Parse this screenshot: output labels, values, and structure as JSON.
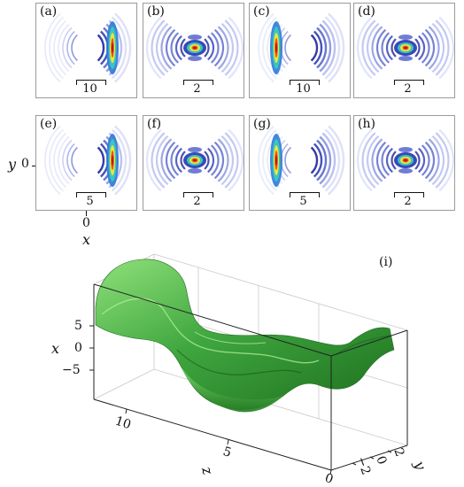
{
  "panels": [
    {
      "label": "(a)",
      "scale": "10"
    },
    {
      "label": "(b)",
      "scale": "2"
    },
    {
      "label": "(c)",
      "scale": "10"
    },
    {
      "label": "(d)",
      "scale": "2"
    },
    {
      "label": "(e)",
      "scale": "5"
    },
    {
      "label": "(f)",
      "scale": "2"
    },
    {
      "label": "(g)",
      "scale": "5"
    },
    {
      "label": "(h)",
      "scale": "2"
    }
  ],
  "axes2d": {
    "y_label": "y",
    "y_tick": "0",
    "x_label": "x",
    "x_tick": "0"
  },
  "plot3d": {
    "label": "(i)",
    "x_label": "x",
    "x_ticks": [
      "5",
      "0",
      "−5"
    ],
    "z_label": "z",
    "z_ticks": [
      "10",
      "5",
      "0"
    ],
    "y_label": "y",
    "y_ticks": [
      "2",
      "0",
      "−2"
    ]
  },
  "colors": {
    "surface": "#3fa63f",
    "surface_dark": "#1d6e1d",
    "surface_light": "#8fe07a"
  }
}
